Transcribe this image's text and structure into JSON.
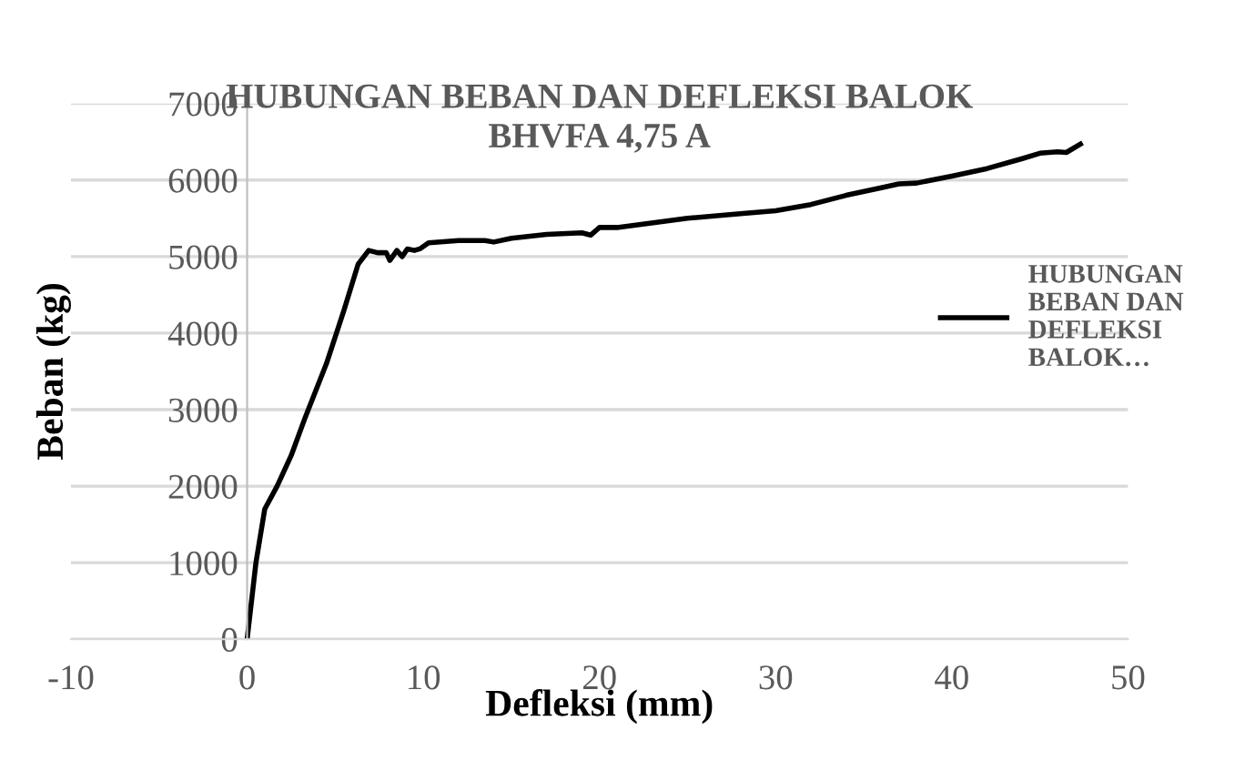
{
  "chart_data": {
    "type": "line",
    "title": "HUBUNGAN BEBAN DAN DEFLEKSI BALOK\nBHVFA 4,75 A",
    "xlabel": "Defleksi (mm)",
    "ylabel": "Beban (kg)",
    "xlim": [
      -10,
      50
    ],
    "xticks": [
      -10,
      0,
      10,
      20,
      30,
      40,
      50
    ],
    "ylim": [
      0,
      7000
    ],
    "yticks": [
      0,
      1000,
      2000,
      3000,
      4000,
      5000,
      6000,
      7000
    ],
    "grid": "y",
    "legend": "right",
    "marker": "none",
    "line_style": "solid",
    "series": [
      {
        "name": "HUBUNGAN BEBAN DAN DEFLEKSI BALOK…",
        "color": "#000000",
        "x": [
          0,
          0.5,
          1,
          1.7,
          2.5,
          3.3,
          4.5,
          5.5,
          6.3,
          6.9,
          7.4,
          7.9,
          8.1,
          8.5,
          8.8,
          9.1,
          9.5,
          9.8,
          10.3,
          12,
          13.5,
          14,
          15,
          17,
          19,
          19.5,
          20,
          21,
          25,
          28,
          30,
          32,
          34,
          36,
          37,
          38,
          40,
          42,
          44,
          45,
          46,
          46.5,
          47.3
        ],
        "values": [
          0,
          1000,
          1700,
          2000,
          2400,
          2900,
          3600,
          4300,
          4900,
          5080,
          5050,
          5050,
          4950,
          5080,
          5000,
          5100,
          5080,
          5100,
          5180,
          5210,
          5210,
          5190,
          5240,
          5290,
          5310,
          5280,
          5380,
          5380,
          5500,
          5560,
          5600,
          5680,
          5800,
          5900,
          5950,
          5960,
          6050,
          6150,
          6280,
          6350,
          6370,
          6360,
          6470
        ]
      }
    ]
  }
}
